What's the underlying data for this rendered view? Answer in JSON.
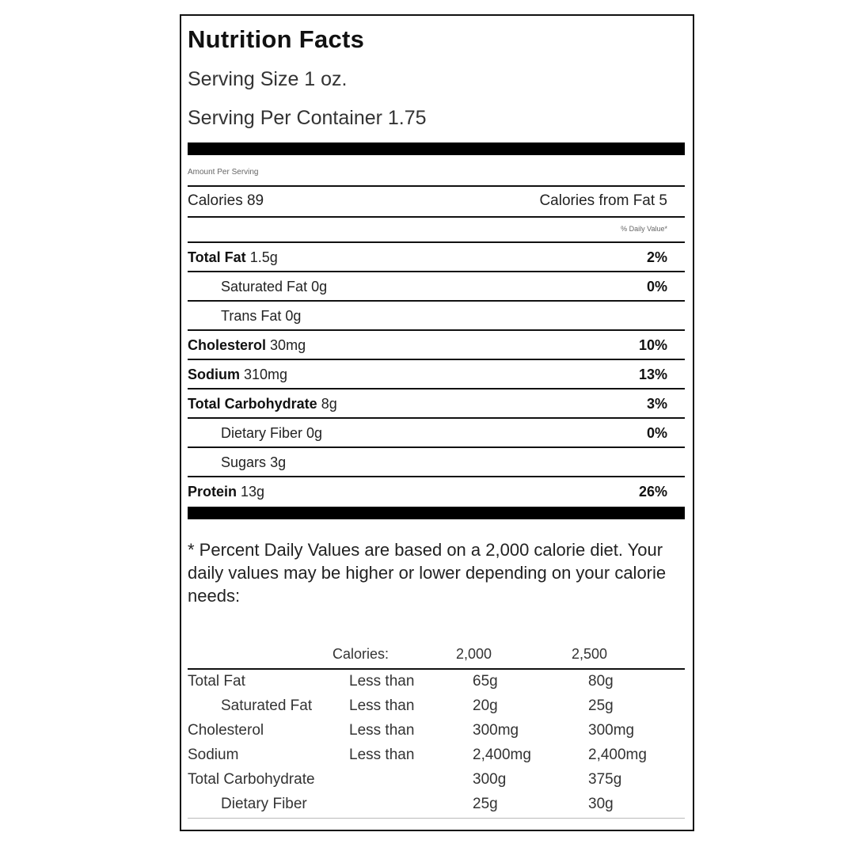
{
  "title": "Nutrition Facts",
  "serving_size": "Serving Size 1 oz.",
  "servings_per_container": "Serving Per Container 1.75",
  "amount_per_serving": "Amount Per Serving",
  "calories": {
    "label": "Calories",
    "value": "89"
  },
  "calories_from_fat": "Calories from Fat 5",
  "daily_value_header": "% Daily Value*",
  "nutrients": [
    {
      "name": "Total Fat",
      "amount": "1.5g",
      "pct": "2%"
    },
    {
      "name": "Saturated Fat",
      "amount": "0g",
      "pct": "0%"
    },
    {
      "name": "Trans Fat",
      "amount": "0g",
      "pct": ""
    },
    {
      "name": "Cholesterol",
      "amount": "30mg",
      "pct": "10%"
    },
    {
      "name": "Sodium",
      "amount": "310mg",
      "pct": "13%"
    },
    {
      "name": "Total Carbohydrate",
      "amount": "8g",
      "pct": "3%"
    },
    {
      "name": "Dietary Fiber",
      "amount": "0g",
      "pct": "0%"
    },
    {
      "name": "Sugars",
      "amount": "3g",
      "pct": ""
    },
    {
      "name": "Protein",
      "amount": "13g",
      "pct": "26%"
    }
  ],
  "footnote": "* Percent Daily Values are based on a 2,000 calorie diet. Your daily values may be higher or lower depending on your calorie needs:",
  "dv_table": {
    "header": {
      "label": "Calories:",
      "col1": "2,000",
      "col2": "2,500"
    },
    "rows": [
      {
        "name": "Total Fat",
        "qualifier": "Less than",
        "v1": "65g",
        "v2": "80g"
      },
      {
        "name": "Saturated Fat",
        "qualifier": "Less than",
        "v1": "20g",
        "v2": "25g"
      },
      {
        "name": "Cholesterol",
        "qualifier": "Less than",
        "v1": "300mg",
        "v2": "300mg"
      },
      {
        "name": "Sodium",
        "qualifier": "Less than",
        "v1": "2,400mg",
        "v2": "2,400mg"
      },
      {
        "name": "Total Carbohydrate",
        "qualifier": "",
        "v1": "300g",
        "v2": "375g"
      },
      {
        "name": "Dietary Fiber",
        "qualifier": "",
        "v1": "25g",
        "v2": "30g"
      }
    ]
  }
}
